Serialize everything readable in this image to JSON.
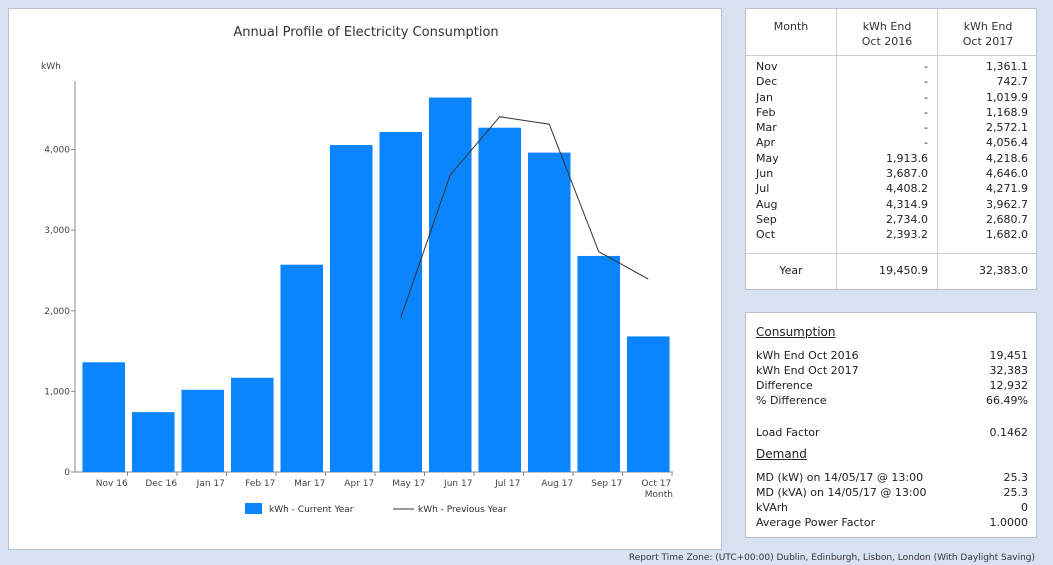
{
  "chart_data": {
    "type": "bar",
    "title": "Annual Profile of Electricity Consumption",
    "ylabel": "kWh",
    "xlabel": "Month",
    "categories": [
      "Nov 16",
      "Dec 16",
      "Jan 17",
      "Feb 17",
      "Mar 17",
      "Apr 17",
      "May 17",
      "Jun 17",
      "Jul 17",
      "Aug 17",
      "Sep 17",
      "Oct 17"
    ],
    "ylim": [
      0,
      5000
    ],
    "yticks": [
      0,
      1000,
      2000,
      3000,
      4000
    ],
    "ytick_labels": [
      "0",
      "1,000",
      "2,000",
      "3,000",
      "4,000"
    ],
    "series": [
      {
        "name": "kWh - Current Year",
        "type": "bar",
        "color": "#0a84ff",
        "values": [
          1361.1,
          742.7,
          1019.9,
          1168.9,
          2572.1,
          4056.4,
          4218.6,
          4646.0,
          4271.9,
          3962.7,
          2680.7,
          1682.0
        ]
      },
      {
        "name": "kWh - Previous Year",
        "type": "line",
        "color": "#333333",
        "values": [
          null,
          null,
          null,
          null,
          null,
          null,
          1913.6,
          3687.0,
          4408.2,
          4314.9,
          2734.0,
          2393.2
        ]
      }
    ],
    "legend": "bottom"
  },
  "table": {
    "headers": [
      "Month",
      "kWh End\nOct 2016",
      "kWh End\nOct 2017"
    ],
    "header_lines": [
      [
        "Month"
      ],
      [
        "kWh End",
        "Oct 2016"
      ],
      [
        "kWh End",
        "Oct 2017"
      ]
    ],
    "rows": [
      [
        "Nov",
        "-",
        "1,361.1"
      ],
      [
        "Dec",
        "-",
        "742.7"
      ],
      [
        "Jan",
        "-",
        "1,019.9"
      ],
      [
        "Feb",
        "-",
        "1,168.9"
      ],
      [
        "Mar",
        "-",
        "2,572.1"
      ],
      [
        "Apr",
        "-",
        "4,056.4"
      ],
      [
        "May",
        "1,913.6",
        "4,218.6"
      ],
      [
        "Jun",
        "3,687.0",
        "4,646.0"
      ],
      [
        "Jul",
        "4,408.2",
        "4,271.9"
      ],
      [
        "Aug",
        "4,314.9",
        "3,962.7"
      ],
      [
        "Sep",
        "2,734.0",
        "2,680.7"
      ],
      [
        "Oct",
        "2,393.2",
        "1,682.0"
      ]
    ],
    "total": [
      "Year",
      "19,450.9",
      "32,383.0"
    ]
  },
  "summary": {
    "consumption_heading": "Consumption",
    "consumption": [
      {
        "label": "kWh End Oct 2016",
        "value": "19,451"
      },
      {
        "label": "kWh End Oct 2017",
        "value": "32,383"
      },
      {
        "label": "Difference",
        "value": "12,932"
      },
      {
        "label": "% Difference",
        "value": "66.49%"
      }
    ],
    "load_factor": {
      "label": "Load Factor",
      "value": "0.1462"
    },
    "demand_heading": "Demand",
    "demand": [
      {
        "label": "MD (kW) on 14/05/17 @ 13:00",
        "value": "25.3"
      },
      {
        "label": "MD (kVA) on 14/05/17 @ 13:00",
        "value": "25.3"
      },
      {
        "label": "kVArh",
        "value": "0"
      },
      {
        "label": "Average Power Factor",
        "value": "1.0000"
      }
    ]
  },
  "footer": "Report Time Zone: (UTC+00:00) Dublin, Edinburgh, Lisbon, London (With Daylight Saving)"
}
